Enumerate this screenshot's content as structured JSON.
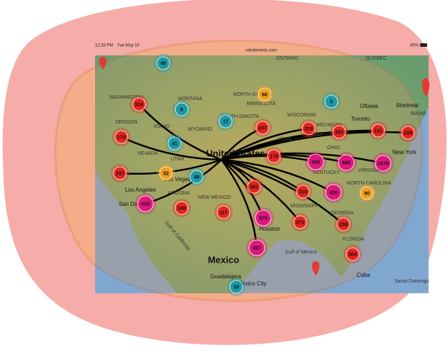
{
  "status_bar": {
    "time": "12:33 PM",
    "date": "Tue May 10",
    "url": "robotevents.com",
    "battery": "85%"
  },
  "places": [
    {
      "label": "ONTARIO"
    },
    {
      "label": "QUEBEC"
    },
    {
      "label": "WASHINGTON"
    },
    {
      "label": "MONTANA"
    },
    {
      "label": "NORTH DAKOTA"
    },
    {
      "label": "MINNESOTA"
    },
    {
      "label": "SOUTH DAKOTA"
    },
    {
      "label": "WISCONSIN"
    },
    {
      "label": "OREGON"
    },
    {
      "label": "IDAHO"
    },
    {
      "label": "WYOMING"
    },
    {
      "label": "MICHIGAN"
    },
    {
      "label": "NEVADA"
    },
    {
      "label": "UTAH"
    },
    {
      "label": "IOWA"
    },
    {
      "label": "Chicago"
    },
    {
      "label": "Ottawa"
    },
    {
      "label": "Montreal"
    },
    {
      "label": "Toronto"
    },
    {
      "label": "MAINE"
    },
    {
      "label": "New York"
    },
    {
      "label": "United States"
    },
    {
      "label": "OHIO"
    },
    {
      "label": "KENTUCKY"
    },
    {
      "label": "VIRGINIA"
    },
    {
      "label": "NORTH CAROLINA"
    },
    {
      "label": "ARIZONA"
    },
    {
      "label": "NEW MEXICO"
    },
    {
      "label": "Los Angeles"
    },
    {
      "label": "San Diego"
    },
    {
      "label": "Las Vegas"
    },
    {
      "label": "Houston"
    },
    {
      "label": "MISSISSIPPI"
    },
    {
      "label": "GEORGIA"
    },
    {
      "label": "FLORIDA"
    },
    {
      "label": "Gulf of California"
    },
    {
      "label": "Mexico"
    },
    {
      "label": "Gulf of Mexico"
    },
    {
      "label": "Guadalajara"
    },
    {
      "label": "Mexico City"
    },
    {
      "label": "Cuba"
    },
    {
      "label": "Santo Domingo"
    }
  ],
  "clusters": [
    {
      "label": 45
    },
    {
      "label": 66
    },
    {
      "label": 5
    },
    {
      "label": 318
    },
    {
      "label": 8
    },
    {
      "label": 17
    },
    {
      "label": 247
    },
    {
      "label": 319
    },
    {
      "label": 283
    },
    {
      "label": 131
    },
    {
      "label": 228
    },
    {
      "label": 178
    },
    {
      "label": 41
    },
    {
      "label": 175
    },
    {
      "label": 440
    },
    {
      "label": 685
    },
    {
      "label": 1070
    },
    {
      "label": 247
    },
    {
      "label": 52
    },
    {
      "label": 48
    },
    {
      "label": 381
    },
    {
      "label": 310
    },
    {
      "label": 420
    },
    {
      "label": 90
    },
    {
      "label": 615
    },
    {
      "label": 148
    },
    {
      "label": 117
    },
    {
      "label": 579
    },
    {
      "label": 271
    },
    {
      "label": 238
    },
    {
      "label": 407
    },
    {
      "label": 304
    },
    {
      "label": 33
    }
  ]
}
